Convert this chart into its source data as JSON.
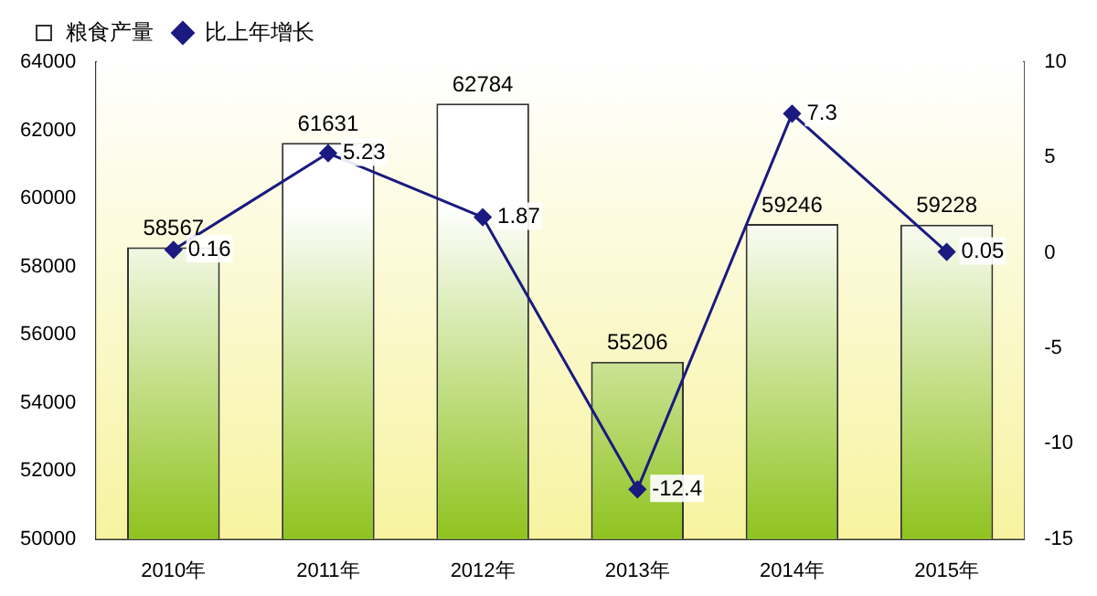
{
  "chart_data": {
    "type": "bar",
    "categories": [
      "2010年",
      "2011年",
      "2012年",
      "2013年",
      "2014年",
      "2015年"
    ],
    "series": [
      {
        "name": "粮食产量",
        "color": "#8fc31f",
        "values": [
          58567,
          61631,
          62784,
          55206,
          59246,
          59228
        ]
      },
      {
        "name": "比上年增长",
        "type": "line",
        "axis": "y2",
        "color": "#1a1a80",
        "values": [
          0.16,
          5.23,
          1.87,
          -12.4,
          7.3,
          0.05
        ]
      }
    ],
    "ylim": [
      50000,
      64000
    ],
    "yticks": [
      50000,
      52000,
      54000,
      56000,
      58000,
      60000,
      62000,
      64000
    ],
    "y2lim": [
      -15,
      10
    ],
    "y2ticks": [
      -15,
      -10,
      -5,
      0,
      5,
      10
    ],
    "grid": false,
    "legend": "top left",
    "marker": "diamond",
    "line_style": "solid",
    "data_labels": true
  }
}
